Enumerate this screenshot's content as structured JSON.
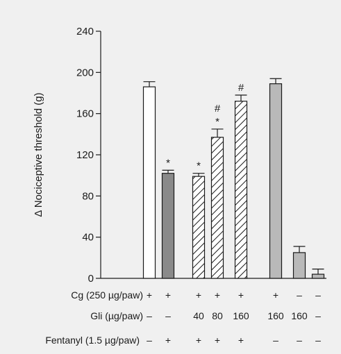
{
  "chart_data": {
    "type": "bar",
    "title": "",
    "xlabel": "",
    "ylabel": "Δ Nociceptive threshold (g)",
    "ylim": [
      0,
      240
    ],
    "yticks": [
      "0",
      "40",
      "80",
      "120",
      "160",
      "200",
      "240"
    ],
    "bars": [
      {
        "value": 186,
        "error": 5,
        "style": "white",
        "markers": []
      },
      {
        "value": 102,
        "error": 3,
        "style": "dark",
        "markers": [
          "*"
        ]
      },
      {
        "value": 99,
        "error": 3,
        "style": "hatched",
        "markers": [
          "*"
        ]
      },
      {
        "value": 137,
        "error": 8,
        "style": "hatched",
        "markers": [
          "*",
          "#"
        ]
      },
      {
        "value": 172,
        "error": 6,
        "style": "hatched",
        "markers": [
          "#"
        ]
      },
      {
        "value": 189,
        "error": 5,
        "style": "light",
        "markers": []
      },
      {
        "value": 25,
        "error": 6,
        "style": "light",
        "markers": []
      },
      {
        "value": 4,
        "error": 5,
        "style": "light",
        "markers": []
      }
    ],
    "condition_rows": [
      {
        "label": "Cg (250 µg/paw)",
        "values": [
          "+",
          "+",
          "+",
          "+",
          "+",
          "+",
          "–",
          "–"
        ]
      },
      {
        "label": "Gli (µg/paw)",
        "values": [
          "–",
          "–",
          "40",
          "80",
          "160",
          "160",
          "160",
          "–"
        ]
      },
      {
        "label": "Fentanyl (1.5 µg/paw)",
        "values": [
          "–",
          "+",
          "+",
          "+",
          "+",
          "–",
          "–",
          "–"
        ]
      }
    ],
    "colors": {
      "white": "#ffffff",
      "dark": "#8a8a8a",
      "hatched": "#ffffff",
      "light": "#b9b9b9",
      "outline": "#1a1a1a"
    }
  }
}
